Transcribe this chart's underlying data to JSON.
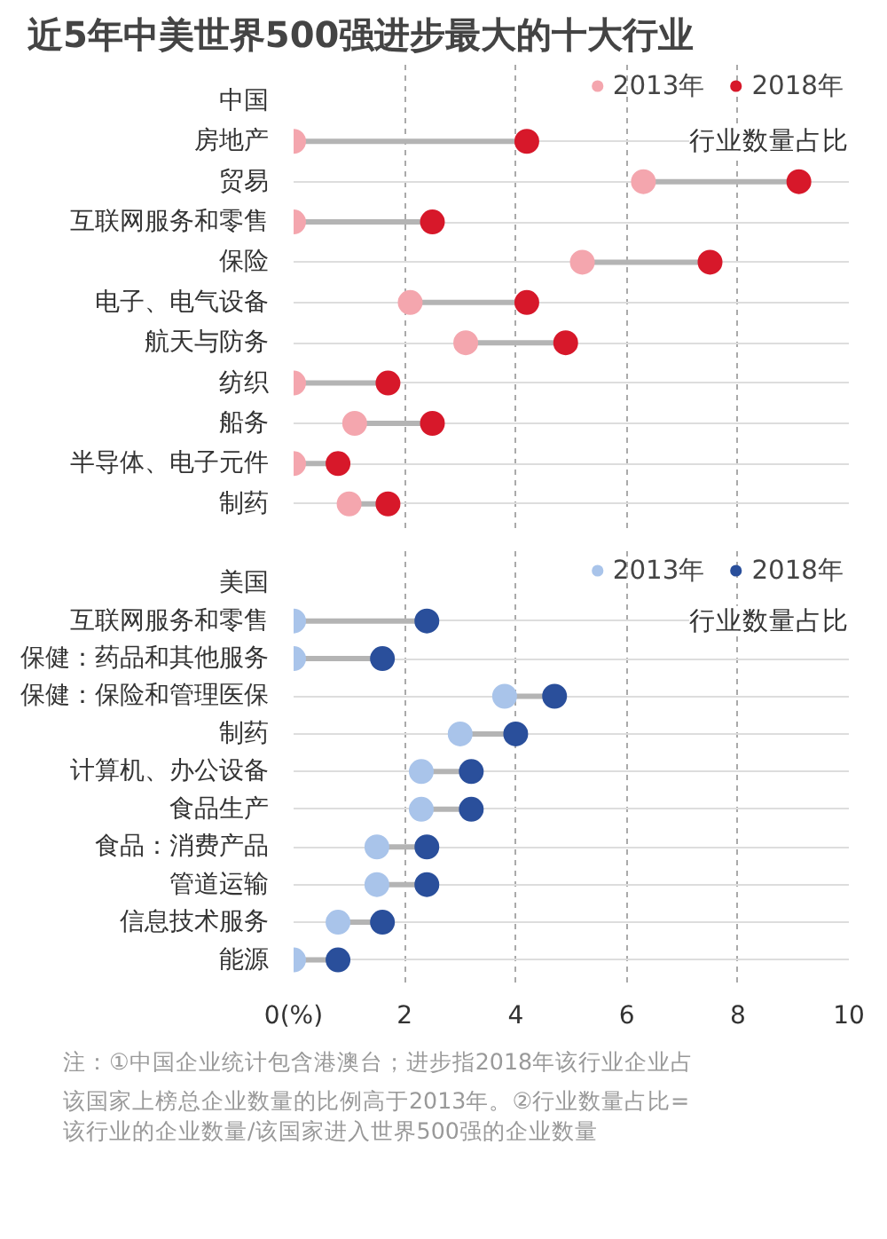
{
  "chart_data": [
    {
      "type": "lollipop",
      "orientation": "horizontal",
      "title": "近5年中美世界500强进步最大的十大行业",
      "subtitle": "中国",
      "xlabel": "行业数量占比",
      "categories": [
        "房地产",
        "贸易",
        "互联网服务和零售",
        "保险",
        "电子、电气设备",
        "航天与防务",
        "纺织",
        "船务",
        "半导体、电子元件",
        "制药"
      ],
      "series": [
        {
          "name": "2013年",
          "color": "#f4a6ae",
          "values": [
            0,
            6.3,
            0,
            5.2,
            2.1,
            3.1,
            0,
            1.1,
            0,
            1.0
          ]
        },
        {
          "name": "2018年",
          "color": "#d7182a",
          "values": [
            4.2,
            9.1,
            2.5,
            7.5,
            4.2,
            4.9,
            1.7,
            2.5,
            0.8,
            1.7
          ]
        }
      ],
      "xlim": [
        0,
        10
      ],
      "xticks": [
        0,
        2,
        4,
        6,
        8,
        10
      ],
      "grid": true,
      "legend": "top right",
      "marker": "circle",
      "tick_labels": "y"
    },
    {
      "type": "lollipop",
      "orientation": "horizontal",
      "subtitle": "美国",
      "xlabel": "行业数量占比",
      "categories": [
        "互联网服务和零售",
        "保健：药品和其他服务",
        "保健：保险和管理医保",
        "制药",
        "计算机、办公设备",
        "食品生产",
        "食品：消费产品",
        "管道运输",
        "信息技术服务",
        "能源"
      ],
      "series": [
        {
          "name": "2013年",
          "color": "#a9c4ea",
          "values": [
            0,
            0,
            3.8,
            3.0,
            2.3,
            2.3,
            1.5,
            1.5,
            0.8,
            0
          ]
        },
        {
          "name": "2018年",
          "color": "#2a4f9b",
          "values": [
            2.4,
            1.6,
            4.7,
            4.0,
            3.2,
            3.2,
            2.4,
            2.4,
            1.6,
            0.8
          ]
        }
      ],
      "xlim": [
        0,
        10
      ],
      "xticks": [
        {
          "value": 0,
          "label": "0(%)"
        },
        2,
        4,
        6,
        8,
        10
      ],
      "grid": true,
      "legend": "top right",
      "marker": "circle",
      "annotations": [
        "注：①中国企业统计包含港澳台；进步指2018年该行业企业占该国家上榜总企业数量的比例高于2013年。②行业数量占比=该行业的企业数量/该国家进入世界500强的企业数量"
      ]
    }
  ]
}
